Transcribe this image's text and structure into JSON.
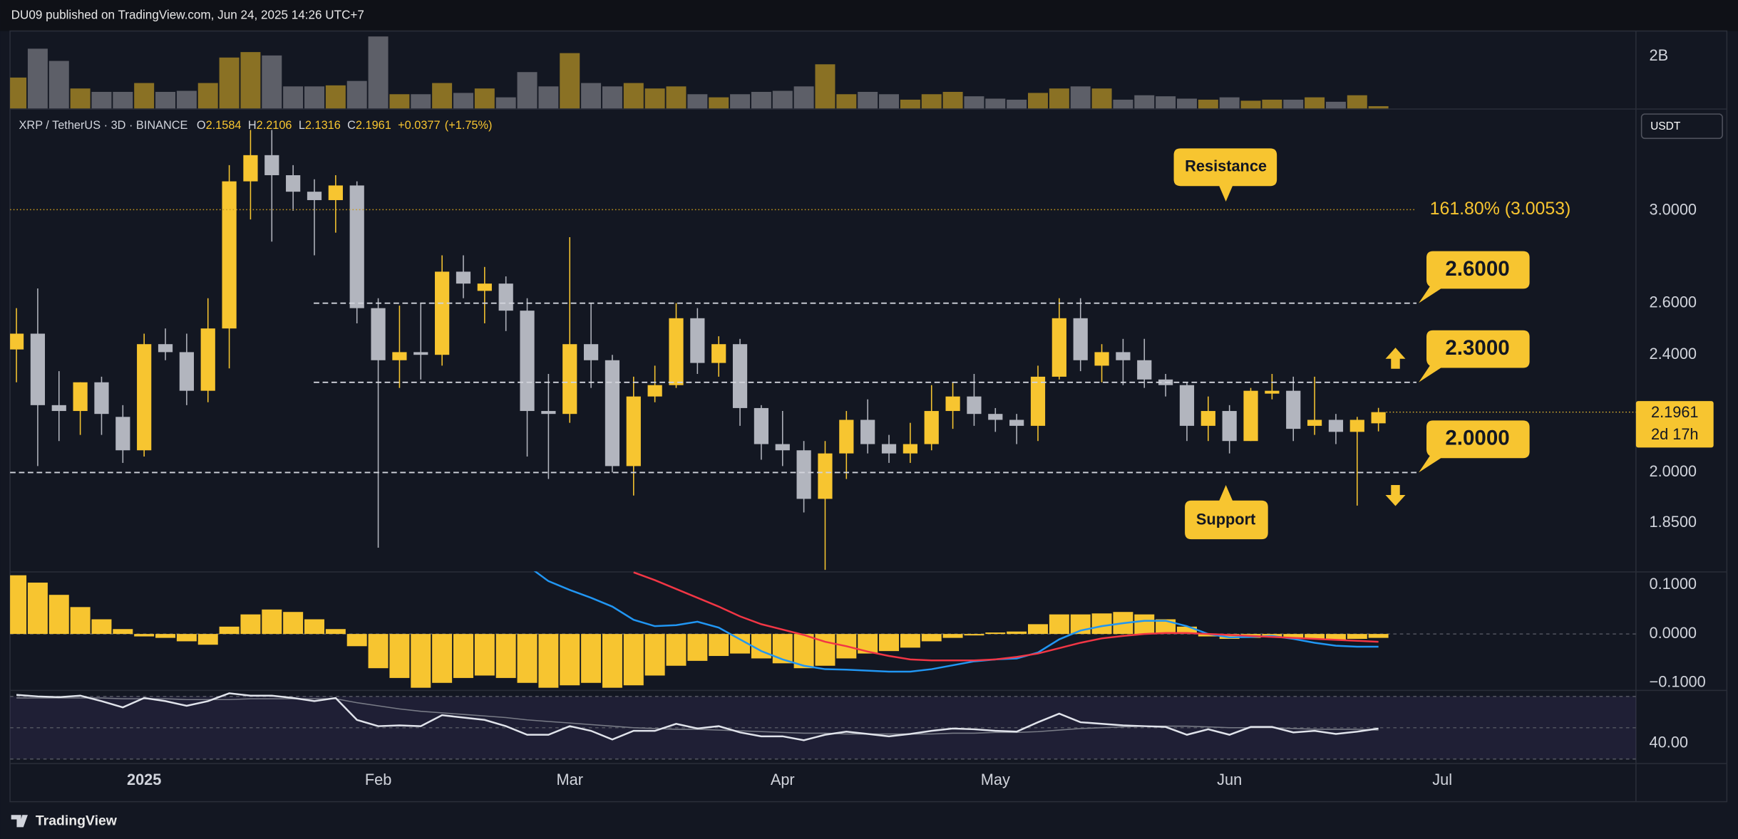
{
  "header": {
    "text": "DU09 published on TradingView.com, Jun 24, 2025 14:26 UTC+7"
  },
  "footer": {
    "brand": "TradingView"
  },
  "chart_data": [
    {
      "type": "candlestick",
      "title": "XRP / TetherUS · 3D · BINANCE",
      "ohlc_labels": [
        "O",
        "H",
        "L",
        "C"
      ],
      "change": "+0.0377",
      "change_pct": "(+1.75%)",
      "open": [
        2.42,
        2.48,
        2.22,
        2.2,
        2.3,
        2.18,
        2.07,
        2.44,
        2.41,
        2.27,
        2.5,
        3.14,
        3.27,
        3.17,
        3.09,
        3.05,
        3.12,
        2.58,
        2.38,
        2.41,
        2.4,
        2.73,
        2.65,
        2.68,
        2.57,
        2.2,
        2.19,
        2.44,
        2.38,
        2.02,
        2.25,
        2.29,
        2.54,
        2.37,
        2.44,
        2.21,
        2.09,
        2.07,
        1.92,
        2.06,
        2.17,
        2.09,
        2.06,
        2.09,
        2.2,
        2.25,
        2.19,
        2.17,
        2.15,
        2.32,
        2.54,
        2.36,
        2.41,
        2.38,
        2.31,
        2.29,
        2.15,
        2.2,
        2.1,
        2.26,
        2.27,
        2.15,
        2.17,
        2.13,
        2.1584
      ],
      "high": [
        2.58,
        2.66,
        2.34,
        2.3,
        2.32,
        2.22,
        2.48,
        2.5,
        2.48,
        2.62,
        3.22,
        3.4,
        3.4,
        3.22,
        3.15,
        3.17,
        3.14,
        2.62,
        2.59,
        2.6,
        2.8,
        2.8,
        2.75,
        2.71,
        2.62,
        2.33,
        2.88,
        2.6,
        2.4,
        2.32,
        2.36,
        2.6,
        2.58,
        2.47,
        2.46,
        2.22,
        2.2,
        2.1,
        2.1,
        2.2,
        2.24,
        2.12,
        2.16,
        2.29,
        2.3,
        2.33,
        2.21,
        2.19,
        2.36,
        2.62,
        2.62,
        2.44,
        2.46,
        2.46,
        2.33,
        2.3,
        2.25,
        2.22,
        2.28,
        2.33,
        2.32,
        2.32,
        2.19,
        2.18,
        2.2106
      ],
      "low": [
        2.3,
        2.02,
        2.1,
        2.12,
        2.12,
        2.03,
        2.05,
        2.38,
        2.22,
        2.23,
        2.35,
        2.96,
        2.86,
        3.0,
        2.8,
        2.9,
        2.52,
        1.78,
        2.28,
        2.31,
        2.36,
        2.62,
        2.52,
        2.49,
        2.05,
        1.98,
        2.16,
        2.28,
        2.0,
        1.93,
        2.23,
        2.28,
        2.33,
        2.32,
        2.15,
        2.04,
        2.02,
        1.88,
        1.72,
        1.98,
        2.06,
        2.03,
        2.03,
        2.07,
        2.14,
        2.15,
        2.13,
        2.09,
        2.1,
        2.31,
        2.34,
        2.3,
        2.29,
        2.28,
        2.25,
        2.1,
        2.1,
        2.06,
        2.1,
        2.24,
        2.1,
        2.12,
        2.09,
        1.9,
        2.1316
      ],
      "close": [
        2.48,
        2.22,
        2.2,
        2.3,
        2.19,
        2.07,
        2.44,
        2.41,
        2.27,
        2.5,
        3.14,
        3.27,
        3.17,
        3.09,
        3.05,
        3.12,
        2.58,
        2.38,
        2.41,
        2.4,
        2.73,
        2.68,
        2.68,
        2.57,
        2.2,
        2.19,
        2.44,
        2.38,
        2.02,
        2.25,
        2.29,
        2.54,
        2.37,
        2.44,
        2.21,
        2.09,
        2.07,
        1.92,
        2.06,
        2.17,
        2.09,
        2.06,
        2.09,
        2.2,
        2.25,
        2.19,
        2.17,
        2.15,
        2.32,
        2.54,
        2.38,
        2.41,
        2.38,
        2.31,
        2.29,
        2.15,
        2.2,
        2.1,
        2.27,
        2.27,
        2.14,
        2.17,
        2.13,
        2.17,
        2.1961
      ],
      "up_color": "#f7c530",
      "down_color": "#b2b5be",
      "log": true,
      "ylim": [
        1.716,
        3.503
      ],
      "yticks": [
        {
          "value": 3,
          "label": "3.0000"
        },
        {
          "value": 2.6,
          "label": "2.6000"
        },
        {
          "value": 2.4,
          "label": "2.4000"
        },
        {
          "value": 2,
          "label": "2.0000"
        },
        {
          "value": 1.85,
          "label": "1.8500"
        }
      ],
      "xlim": [
        -0.3,
        76.1
      ],
      "xticks": [
        {
          "value": 6,
          "label": "2025"
        },
        {
          "value": 17,
          "label": "Feb"
        },
        {
          "value": 26,
          "label": "Mar"
        },
        {
          "value": 36,
          "label": "Apr"
        },
        {
          "value": 46,
          "label": "May"
        },
        {
          "value": 57,
          "label": "Jun"
        },
        {
          "value": 67,
          "label": "Jul"
        }
      ],
      "levels": [
        {
          "value": 2.6,
          "label": "2.6000"
        },
        {
          "value": 2.3,
          "label": "2.3000"
        },
        {
          "value": 2,
          "label": "2.0000"
        }
      ],
      "fib": {
        "value": 3.0053,
        "label": "161.80% (3.0053)"
      },
      "annotations": [
        "Resistance",
        "Support"
      ],
      "currency": "USDT",
      "countdown": "2d 17h"
    },
    {
      "type": "volume",
      "values": [
        1.19,
        2.3,
        1.83,
        0.77,
        0.64,
        0.64,
        0.98,
        0.64,
        0.68,
        0.98,
        1.96,
        2.17,
        2.04,
        0.85,
        0.85,
        0.89,
        1.06,
        2.77,
        0.55,
        0.55,
        0.98,
        0.6,
        0.77,
        0.43,
        1.4,
        0.85,
        2.13,
        0.98,
        0.85,
        0.98,
        0.77,
        0.85,
        0.55,
        0.43,
        0.55,
        0.64,
        0.68,
        0.85,
        1.7,
        0.55,
        0.64,
        0.55,
        0.34,
        0.55,
        0.64,
        0.47,
        0.38,
        0.34,
        0.6,
        0.77,
        0.85,
        0.77,
        0.34,
        0.51,
        0.47,
        0.38,
        0.34,
        0.43,
        0.3,
        0.34,
        0.34,
        0.43,
        0.26,
        0.51,
        0.09
      ],
      "up_color": "#8a7124",
      "down_color": "#5d5f68",
      "ylim": [
        0,
        2.98
      ],
      "yticks": [
        {
          "value": 2,
          "label": "2B"
        }
      ]
    },
    {
      "type": "macd",
      "histogram": [
        0.12,
        0.105,
        0.08,
        0.055,
        0.03,
        0.01,
        -0.005,
        -0.008,
        -0.015,
        -0.022,
        0.015,
        0.04,
        0.05,
        0.045,
        0.03,
        0.01,
        -0.025,
        -0.07,
        -0.09,
        -0.11,
        -0.1,
        -0.09,
        -0.085,
        -0.09,
        -0.1,
        -0.11,
        -0.105,
        -0.1,
        -0.11,
        -0.105,
        -0.085,
        -0.065,
        -0.055,
        -0.045,
        -0.04,
        -0.05,
        -0.06,
        -0.07,
        -0.065,
        -0.05,
        -0.04,
        -0.035,
        -0.028,
        -0.015,
        -0.008,
        -0.003,
        0.003,
        0.005,
        0.02,
        0.04,
        0.04,
        0.042,
        0.045,
        0.04,
        0.03,
        0.015,
        -0.005,
        -0.01,
        -0.008,
        -0.005,
        -0.008,
        -0.01,
        -0.012,
        -0.01,
        -0.008
      ],
      "histogram_color": "#f7c530",
      "zero_line": true,
      "series": [
        {
          "color": "#2196f3",
          "values": [
            null,
            null,
            null,
            null,
            null,
            null,
            null,
            null,
            null,
            null,
            null,
            null,
            null,
            null,
            null,
            null,
            null,
            null,
            null,
            null,
            null,
            null,
            null,
            null,
            0.14,
            0.108,
            0.09,
            0.074,
            0.056,
            0.029,
            0.016,
            0.018,
            0.025,
            0.013,
            -0.011,
            -0.035,
            -0.052,
            -0.065,
            -0.072,
            -0.073,
            -0.075,
            -0.077,
            -0.077,
            -0.072,
            -0.064,
            -0.056,
            -0.052,
            -0.05,
            -0.038,
            -0.011,
            0.007,
            0.016,
            0.022,
            0.027,
            0.027,
            0.016,
            0,
            -0.007,
            -0.006,
            -0.004,
            -0.01,
            -0.018,
            -0.024,
            -0.026,
            -0.026
          ]
        },
        {
          "color": "#f23645",
          "values": [
            null,
            null,
            null,
            null,
            null,
            null,
            null,
            null,
            null,
            null,
            null,
            null,
            null,
            null,
            null,
            null,
            null,
            null,
            null,
            null,
            null,
            null,
            null,
            null,
            null,
            null,
            null,
            null,
            null,
            0.126,
            0.11,
            0.092,
            0.074,
            0.056,
            0.036,
            0.02,
            0.009,
            -0.002,
            -0.016,
            -0.025,
            -0.036,
            -0.045,
            -0.052,
            -0.054,
            -0.054,
            -0.054,
            -0.052,
            -0.047,
            -0.04,
            -0.029,
            -0.018,
            -0.009,
            -0.004,
            0,
            0.002,
            0.002,
            0,
            -0.002,
            -0.004,
            -0.006,
            -0.008,
            -0.01,
            -0.012,
            -0.014,
            -0.016
          ]
        }
      ],
      "ylim": [
        -0.112,
        0.128
      ],
      "yticks": [
        {
          "value": 0.1,
          "label": "0.1000"
        },
        {
          "value": 0,
          "label": "0.0000"
        },
        {
          "value": -0.1,
          "label": "−0.1000"
        }
      ]
    },
    {
      "type": "rsi",
      "band": [
        30,
        70
      ],
      "midline": 50,
      "band_color": "#7e57c2",
      "series": [
        {
          "color": "#787b86",
          "values": [
            69,
            69,
            69,
            69,
            69,
            68.5,
            68.5,
            68.5,
            68,
            68,
            68,
            68.5,
            68.5,
            68.5,
            68.5,
            68.5,
            66,
            64,
            62,
            60.5,
            59.5,
            58.5,
            57.5,
            56.5,
            55,
            54,
            53,
            52,
            51,
            50,
            49.5,
            49,
            49,
            48.5,
            48,
            47.5,
            47,
            46.5,
            46.5,
            46,
            46,
            46,
            46,
            46,
            46.5,
            46.5,
            47,
            47,
            47.5,
            48.5,
            49.5,
            50,
            50.5,
            51,
            51,
            51,
            50.5,
            50,
            50,
            50,
            49.5,
            49,
            49,
            49,
            48.5
          ]
        },
        {
          "color": "#e0e3eb",
          "values": [
            71,
            70,
            69.5,
            70.5,
            67,
            63,
            69,
            67,
            64,
            67,
            72,
            70.5,
            70.5,
            69,
            67,
            69,
            55,
            51,
            51.5,
            51,
            58,
            56.5,
            55,
            51,
            45.5,
            45.5,
            51,
            48,
            42.5,
            48,
            48,
            52.5,
            49.5,
            51,
            47,
            44.5,
            44.5,
            42,
            45.5,
            47.5,
            46,
            44.5,
            46,
            48,
            49.5,
            49,
            48,
            47.5,
            53.5,
            59,
            53.5,
            52.5,
            51.5,
            51,
            50.5,
            45.5,
            49,
            45.5,
            50.5,
            50.5,
            47,
            48,
            46,
            47.5,
            49.5
          ]
        }
      ],
      "ylim": [
        28.2,
        73.5
      ],
      "yticks": [
        {
          "value": 40,
          "label": "40.00"
        }
      ]
    }
  ]
}
